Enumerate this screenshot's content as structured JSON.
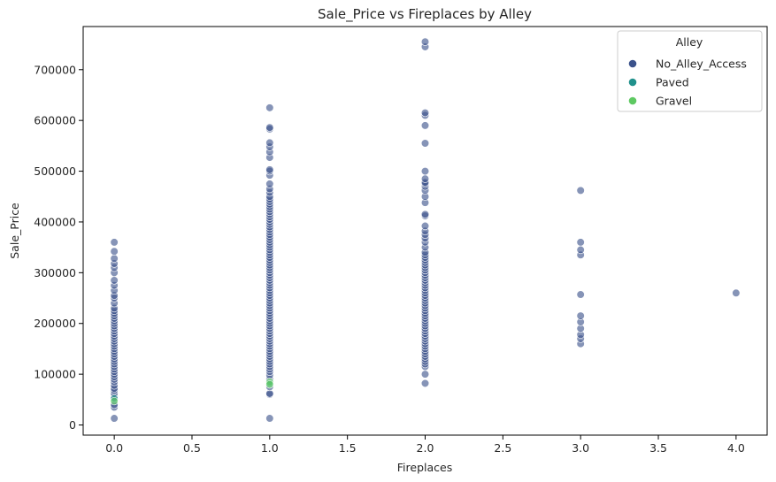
{
  "chart_data": {
    "type": "scatter",
    "title": "Sale_Price vs Fireplaces by Alley",
    "xlabel": "Fireplaces",
    "ylabel": "Sale_Price",
    "xlim": [
      -0.2,
      4.2
    ],
    "ylim": [
      -20000,
      785000
    ],
    "xticks": [
      0.0,
      0.5,
      1.0,
      1.5,
      2.0,
      2.5,
      3.0,
      3.5,
      4.0
    ],
    "xtick_labels": [
      "0.0",
      "0.5",
      "1.0",
      "1.5",
      "2.0",
      "2.5",
      "3.0",
      "3.5",
      "4.0"
    ],
    "yticks": [
      0,
      100000,
      200000,
      300000,
      400000,
      500000,
      600000,
      700000
    ],
    "ytick_labels": [
      "0",
      "100000",
      "200000",
      "300000",
      "400000",
      "500000",
      "600000",
      "700000"
    ],
    "grid": false,
    "legend": {
      "title": "Alley",
      "placement": "top-right"
    },
    "series": [
      {
        "name": "No_Alley_Access",
        "color": "#3b528b",
        "points": [
          [
            0,
            13000
          ],
          [
            0,
            35000
          ],
          [
            0,
            40000
          ],
          [
            0,
            55000
          ],
          [
            0,
            62000
          ],
          [
            0,
            68000
          ],
          [
            0,
            72000
          ],
          [
            0,
            78000
          ],
          [
            0,
            85000
          ],
          [
            0,
            90000
          ],
          [
            0,
            95000
          ],
          [
            0,
            100000
          ],
          [
            0,
            105000
          ],
          [
            0,
            110000
          ],
          [
            0,
            115000
          ],
          [
            0,
            120000
          ],
          [
            0,
            125000
          ],
          [
            0,
            130000
          ],
          [
            0,
            135000
          ],
          [
            0,
            140000
          ],
          [
            0,
            145000
          ],
          [
            0,
            150000
          ],
          [
            0,
            155000
          ],
          [
            0,
            160000
          ],
          [
            0,
            165000
          ],
          [
            0,
            170000
          ],
          [
            0,
            175000
          ],
          [
            0,
            180000
          ],
          [
            0,
            185000
          ],
          [
            0,
            190000
          ],
          [
            0,
            195000
          ],
          [
            0,
            200000
          ],
          [
            0,
            205000
          ],
          [
            0,
            210000
          ],
          [
            0,
            215000
          ],
          [
            0,
            220000
          ],
          [
            0,
            225000
          ],
          [
            0,
            230000
          ],
          [
            0,
            240000
          ],
          [
            0,
            250000
          ],
          [
            0,
            255000
          ],
          [
            0,
            265000
          ],
          [
            0,
            275000
          ],
          [
            0,
            285000
          ],
          [
            0,
            300000
          ],
          [
            0,
            310000
          ],
          [
            0,
            318000
          ],
          [
            0,
            328000
          ],
          [
            0,
            342000
          ],
          [
            0,
            360000
          ],
          [
            1,
            13000
          ],
          [
            1,
            60000
          ],
          [
            1,
            62000
          ],
          [
            1,
            75000
          ],
          [
            1,
            90000
          ],
          [
            1,
            98000
          ],
          [
            1,
            105000
          ],
          [
            1,
            110000
          ],
          [
            1,
            115000
          ],
          [
            1,
            120000
          ],
          [
            1,
            125000
          ],
          [
            1,
            130000
          ],
          [
            1,
            135000
          ],
          [
            1,
            140000
          ],
          [
            1,
            145000
          ],
          [
            1,
            150000
          ],
          [
            1,
            155000
          ],
          [
            1,
            160000
          ],
          [
            1,
            165000
          ],
          [
            1,
            170000
          ],
          [
            1,
            175000
          ],
          [
            1,
            180000
          ],
          [
            1,
            185000
          ],
          [
            1,
            190000
          ],
          [
            1,
            195000
          ],
          [
            1,
            200000
          ],
          [
            1,
            205000
          ],
          [
            1,
            210000
          ],
          [
            1,
            215000
          ],
          [
            1,
            220000
          ],
          [
            1,
            225000
          ],
          [
            1,
            230000
          ],
          [
            1,
            235000
          ],
          [
            1,
            240000
          ],
          [
            1,
            245000
          ],
          [
            1,
            250000
          ],
          [
            1,
            255000
          ],
          [
            1,
            260000
          ],
          [
            1,
            265000
          ],
          [
            1,
            270000
          ],
          [
            1,
            275000
          ],
          [
            1,
            280000
          ],
          [
            1,
            285000
          ],
          [
            1,
            290000
          ],
          [
            1,
            295000
          ],
          [
            1,
            300000
          ],
          [
            1,
            305000
          ],
          [
            1,
            310000
          ],
          [
            1,
            315000
          ],
          [
            1,
            320000
          ],
          [
            1,
            325000
          ],
          [
            1,
            330000
          ],
          [
            1,
            335000
          ],
          [
            1,
            340000
          ],
          [
            1,
            345000
          ],
          [
            1,
            350000
          ],
          [
            1,
            355000
          ],
          [
            1,
            360000
          ],
          [
            1,
            365000
          ],
          [
            1,
            370000
          ],
          [
            1,
            375000
          ],
          [
            1,
            380000
          ],
          [
            1,
            385000
          ],
          [
            1,
            390000
          ],
          [
            1,
            395000
          ],
          [
            1,
            400000
          ],
          [
            1,
            405000
          ],
          [
            1,
            410000
          ],
          [
            1,
            415000
          ],
          [
            1,
            420000
          ],
          [
            1,
            425000
          ],
          [
            1,
            430000
          ],
          [
            1,
            435000
          ],
          [
            1,
            440000
          ],
          [
            1,
            445000
          ],
          [
            1,
            450000
          ],
          [
            1,
            458000
          ],
          [
            1,
            465000
          ],
          [
            1,
            475000
          ],
          [
            1,
            492000
          ],
          [
            1,
            500000
          ],
          [
            1,
            503000
          ],
          [
            1,
            527000
          ],
          [
            1,
            538000
          ],
          [
            1,
            548000
          ],
          [
            1,
            556000
          ],
          [
            1,
            583000
          ],
          [
            1,
            586000
          ],
          [
            1,
            625000
          ],
          [
            2,
            82000
          ],
          [
            2,
            100000
          ],
          [
            2,
            115000
          ],
          [
            2,
            120000
          ],
          [
            2,
            125000
          ],
          [
            2,
            130000
          ],
          [
            2,
            135000
          ],
          [
            2,
            140000
          ],
          [
            2,
            145000
          ],
          [
            2,
            150000
          ],
          [
            2,
            155000
          ],
          [
            2,
            160000
          ],
          [
            2,
            165000
          ],
          [
            2,
            170000
          ],
          [
            2,
            175000
          ],
          [
            2,
            180000
          ],
          [
            2,
            185000
          ],
          [
            2,
            190000
          ],
          [
            2,
            195000
          ],
          [
            2,
            200000
          ],
          [
            2,
            205000
          ],
          [
            2,
            210000
          ],
          [
            2,
            215000
          ],
          [
            2,
            220000
          ],
          [
            2,
            225000
          ],
          [
            2,
            230000
          ],
          [
            2,
            235000
          ],
          [
            2,
            240000
          ],
          [
            2,
            245000
          ],
          [
            2,
            250000
          ],
          [
            2,
            255000
          ],
          [
            2,
            260000
          ],
          [
            2,
            265000
          ],
          [
            2,
            270000
          ],
          [
            2,
            275000
          ],
          [
            2,
            280000
          ],
          [
            2,
            285000
          ],
          [
            2,
            290000
          ],
          [
            2,
            295000
          ],
          [
            2,
            300000
          ],
          [
            2,
            305000
          ],
          [
            2,
            310000
          ],
          [
            2,
            315000
          ],
          [
            2,
            320000
          ],
          [
            2,
            325000
          ],
          [
            2,
            330000
          ],
          [
            2,
            335000
          ],
          [
            2,
            340000
          ],
          [
            2,
            350000
          ],
          [
            2,
            360000
          ],
          [
            2,
            368000
          ],
          [
            2,
            375000
          ],
          [
            2,
            382000
          ],
          [
            2,
            392000
          ],
          [
            2,
            412000
          ],
          [
            2,
            415000
          ],
          [
            2,
            438000
          ],
          [
            2,
            450000
          ],
          [
            2,
            462000
          ],
          [
            2,
            470000
          ],
          [
            2,
            475000
          ],
          [
            2,
            478000
          ],
          [
            2,
            485000
          ],
          [
            2,
            500000
          ],
          [
            2,
            555000
          ],
          [
            2,
            590000
          ],
          [
            2,
            610000
          ],
          [
            2,
            615000
          ],
          [
            2,
            745000
          ],
          [
            2,
            755000
          ],
          [
            3,
            160000
          ],
          [
            3,
            170000
          ],
          [
            3,
            178000
          ],
          [
            3,
            190000
          ],
          [
            3,
            203000
          ],
          [
            3,
            215000
          ],
          [
            3,
            257000
          ],
          [
            3,
            335000
          ],
          [
            3,
            345000
          ],
          [
            3,
            360000
          ],
          [
            3,
            462000
          ],
          [
            4,
            260000
          ]
        ]
      },
      {
        "name": "Paved",
        "color": "#21918c",
        "points": [
          [
            0,
            52000
          ],
          [
            1,
            82000
          ]
        ]
      },
      {
        "name": "Gravel",
        "color": "#5ec962",
        "points": [
          [
            0,
            47000
          ],
          [
            1,
            85000
          ],
          [
            1,
            80000
          ]
        ]
      }
    ]
  }
}
